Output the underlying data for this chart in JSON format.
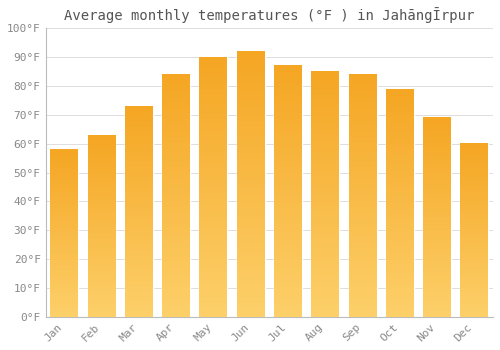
{
  "title": "Average monthly temperatures (°F ) in JahāngĪrpur",
  "months": [
    "Jan",
    "Feb",
    "Mar",
    "Apr",
    "May",
    "Jun",
    "Jul",
    "Aug",
    "Sep",
    "Oct",
    "Nov",
    "Dec"
  ],
  "values": [
    58,
    63,
    73,
    84,
    90,
    92,
    87,
    85,
    84,
    79,
    69,
    60
  ],
  "bar_color_top": "#F5A623",
  "bar_color_bottom": "#FDD06A",
  "bar_edge_color": "#E8960A",
  "background_color": "#FFFFFF",
  "grid_color": "#DDDDDD",
  "ylim": [
    0,
    100
  ],
  "yticks": [
    0,
    10,
    20,
    30,
    40,
    50,
    60,
    70,
    80,
    90,
    100
  ],
  "ytick_labels": [
    "0°F",
    "10°F",
    "20°F",
    "30°F",
    "40°F",
    "50°F",
    "60°F",
    "70°F",
    "80°F",
    "90°F",
    "100°F"
  ],
  "title_fontsize": 10,
  "tick_fontsize": 8,
  "bar_width": 0.75,
  "tick_color": "#888888"
}
